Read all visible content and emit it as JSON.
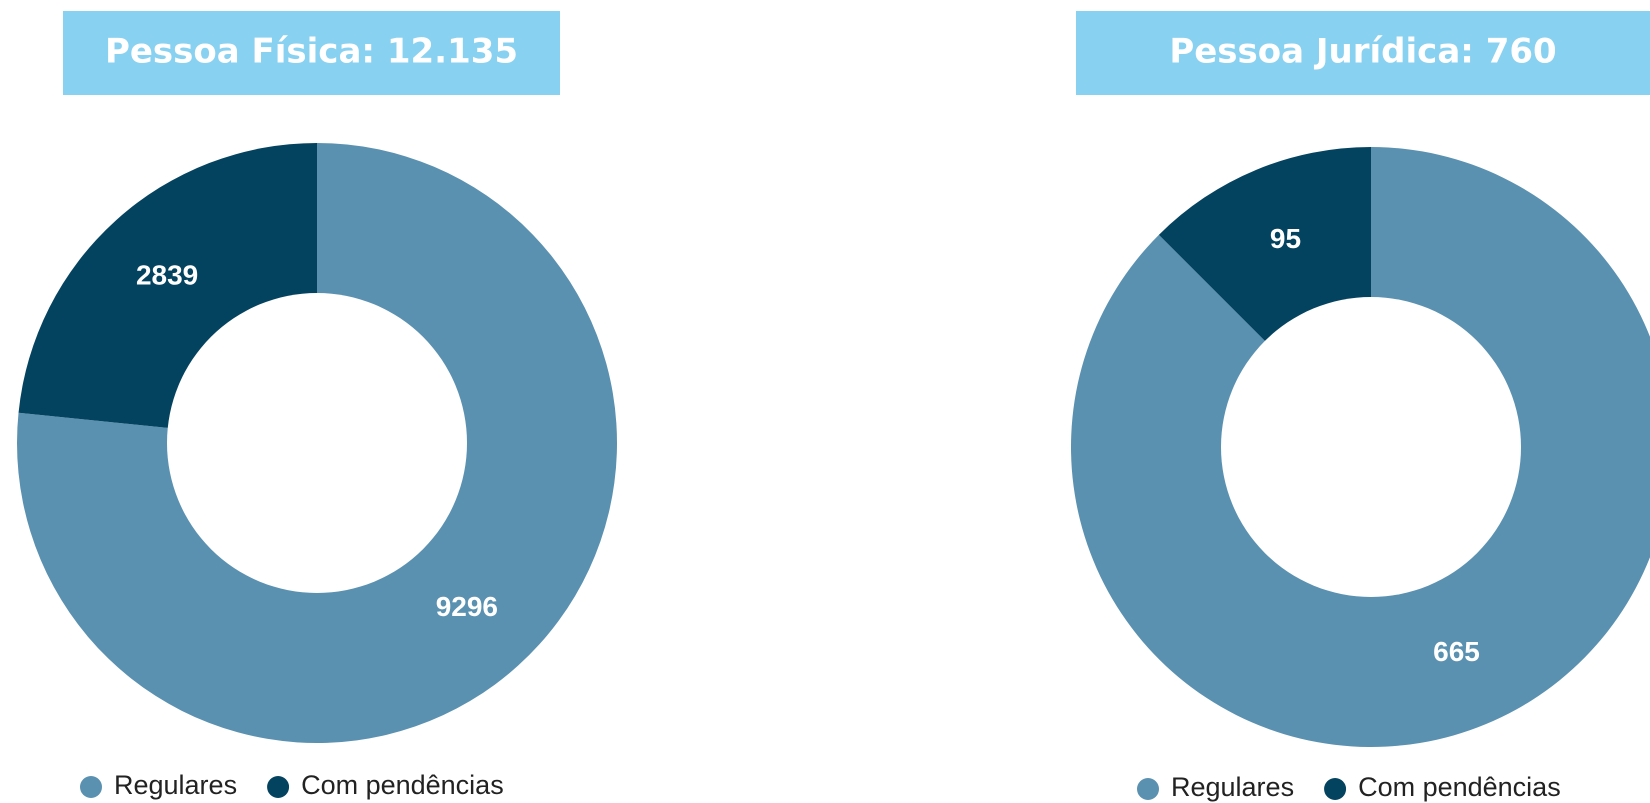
{
  "chart_data": [
    {
      "type": "donut",
      "title": "Pessoa Física: 12.135",
      "categories": [
        "Regulares",
        "Com pendências"
      ],
      "values": [
        9296,
        2839
      ],
      "colors": [
        "#5a91b0",
        "#04435f"
      ]
    },
    {
      "type": "donut",
      "title": "Pessoa Jurídica: 760",
      "categories": [
        "Regulares",
        "Com pendências"
      ],
      "values": [
        665,
        95
      ],
      "colors": [
        "#5a91b0",
        "#04435f"
      ]
    }
  ]
}
